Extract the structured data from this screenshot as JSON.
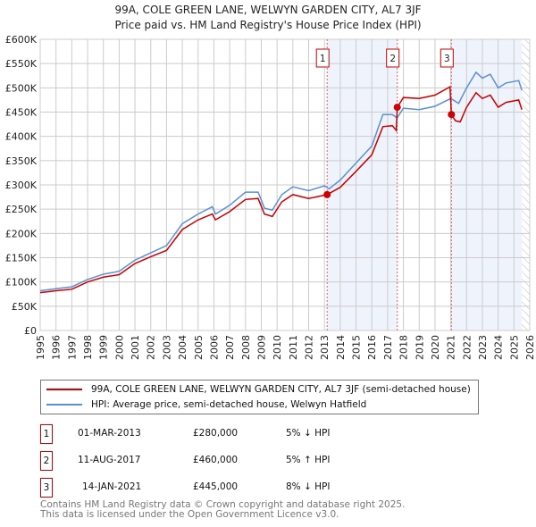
{
  "title": "99A, COLE GREEN LANE, WELWYN GARDEN CITY, AL7 3JF",
  "subtitle": "Price paid vs. HM Land Registry's House Price Index (HPI)",
  "colors": {
    "price": "#cc0000",
    "hpi": "#5b8fd6",
    "shade": "#eef3fc"
  },
  "chart_data": {
    "type": "line",
    "xlim": [
      1995,
      2026
    ],
    "ylim": [
      0,
      600000
    ],
    "x_ticks": [
      "1995",
      "1996",
      "1997",
      "1998",
      "1999",
      "2000",
      "2001",
      "2002",
      "2003",
      "2004",
      "2005",
      "2006",
      "2007",
      "2008",
      "2009",
      "2010",
      "2011",
      "2012",
      "2013",
      "2014",
      "2015",
      "2016",
      "2017",
      "2018",
      "2019",
      "2020",
      "2021",
      "2022",
      "2023",
      "2024",
      "2025",
      "2026"
    ],
    "y_ticks": [
      {
        "v": 0,
        "label": "£0"
      },
      {
        "v": 50000,
        "label": "£50K"
      },
      {
        "v": 100000,
        "label": "£100K"
      },
      {
        "v": 150000,
        "label": "£150K"
      },
      {
        "v": 200000,
        "label": "£200K"
      },
      {
        "v": 250000,
        "label": "£250K"
      },
      {
        "v": 300000,
        "label": "£300K"
      },
      {
        "v": 350000,
        "label": "£350K"
      },
      {
        "v": 400000,
        "label": "£400K"
      },
      {
        "v": 450000,
        "label": "£450K"
      },
      {
        "v": 500000,
        "label": "£500K"
      },
      {
        "v": 550000,
        "label": "£550K"
      },
      {
        "v": 600000,
        "label": "£600K"
      }
    ],
    "grid": true,
    "data_end": 2025.5,
    "series": [
      {
        "name": "99A, COLE GREEN LANE, WELWYN GARDEN CITY, AL7 3JF (semi-detached house)",
        "key": "price",
        "x": [
          1995,
          1996,
          1997,
          1998,
          1999,
          2000,
          2001,
          2002,
          2003,
          2004,
          2005,
          2005.9,
          2006.1,
          2007,
          2008,
          2008.8,
          2009.2,
          2009.7,
          2010.3,
          2011,
          2012,
          2013.17,
          2014,
          2015,
          2016,
          2016.7,
          2017.3,
          2017.55,
          2017.61,
          2018,
          2019,
          2020,
          2020.95,
          2021.04,
          2021.3,
          2021.6,
          2022,
          2022.6,
          2023,
          2023.5,
          2024,
          2024.5,
          2025.3,
          2025.5
        ],
        "y": [
          78000,
          82000,
          85000,
          100000,
          110000,
          115000,
          138000,
          152000,
          165000,
          208000,
          228000,
          240000,
          228000,
          245000,
          270000,
          272000,
          240000,
          235000,
          265000,
          280000,
          272000,
          280000,
          295000,
          328000,
          362000,
          420000,
          422000,
          412000,
          460000,
          480000,
          478000,
          485000,
          502000,
          445000,
          432000,
          430000,
          460000,
          490000,
          478000,
          485000,
          460000,
          470000,
          475000,
          455000
        ]
      },
      {
        "name": "HPI: Average price, semi-detached house, Welwyn Hatfield",
        "key": "hpi",
        "x": [
          1995,
          1996,
          1997,
          1998,
          1999,
          2000,
          2001,
          2002,
          2003,
          2004,
          2005,
          2005.9,
          2006.1,
          2007,
          2008,
          2008.8,
          2009.2,
          2009.7,
          2010.3,
          2011,
          2012,
          2013,
          2013.3,
          2014,
          2015,
          2016,
          2016.7,
          2017.3,
          2017.6,
          2018,
          2019,
          2020,
          2021,
          2021.5,
          2022,
          2022.6,
          2023,
          2023.5,
          2024,
          2024.5,
          2025.3,
          2025.5
        ],
        "y": [
          82000,
          86000,
          90000,
          105000,
          116000,
          122000,
          145000,
          160000,
          175000,
          220000,
          240000,
          255000,
          240000,
          258000,
          285000,
          285000,
          252000,
          248000,
          280000,
          296000,
          288000,
          298000,
          292000,
          310000,
          345000,
          380000,
          445000,
          445000,
          438000,
          458000,
          455000,
          462000,
          478000,
          468000,
          500000,
          532000,
          520000,
          528000,
          500000,
          510000,
          515000,
          495000
        ]
      }
    ],
    "sales": [
      {
        "n": "1",
        "x": 2013.17,
        "y": 280000,
        "date": "01-MAR-2013",
        "price": "£280,000",
        "hpi": "5% ↓ HPI"
      },
      {
        "n": "2",
        "x": 2017.61,
        "y": 460000,
        "date": "11-AUG-2017",
        "price": "£460,000",
        "hpi": "5% ↑ HPI"
      },
      {
        "n": "3",
        "x": 2021.04,
        "y": 445000,
        "date": "14-JAN-2021",
        "price": "£445,000",
        "hpi": "8% ↓ HPI"
      }
    ]
  },
  "footer": [
    "Contains HM Land Registry data © Crown copyright and database right 2025.",
    "This data is licensed under the Open Government Licence v3.0."
  ]
}
